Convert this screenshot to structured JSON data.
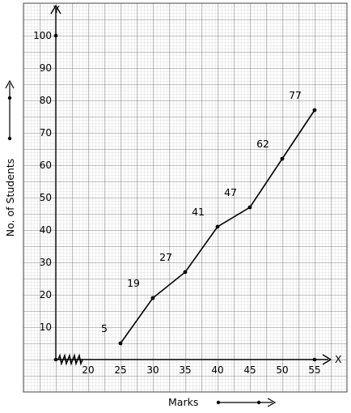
{
  "chart_data": {
    "type": "line",
    "title": "",
    "xlabel": "Marks",
    "ylabel": "No. of Students",
    "x_axis_letter": "X",
    "y_axis_letter": "Y",
    "x_ticks": [
      "20",
      "25",
      "30",
      "35",
      "40",
      "45",
      "50",
      "55"
    ],
    "y_ticks": [
      "10",
      "20",
      "30",
      "40",
      "50",
      "60",
      "70",
      "80",
      "90",
      "100"
    ],
    "xlim": [
      15,
      55
    ],
    "ylim": [
      0,
      100
    ],
    "x_axis_break": true,
    "grid": true,
    "series": [
      {
        "x": [
          25,
          30,
          35,
          40,
          45,
          50,
          55
        ],
        "y": [
          5,
          19,
          27,
          41,
          47,
          62,
          77
        ],
        "labels": [
          "5",
          "19",
          "27",
          "41",
          "47",
          "62",
          "77"
        ]
      }
    ],
    "colors": {
      "line": "#000000",
      "grid_major": "#555555",
      "grid_minor": "#bbbbbb",
      "background": "#ffffff"
    }
  }
}
